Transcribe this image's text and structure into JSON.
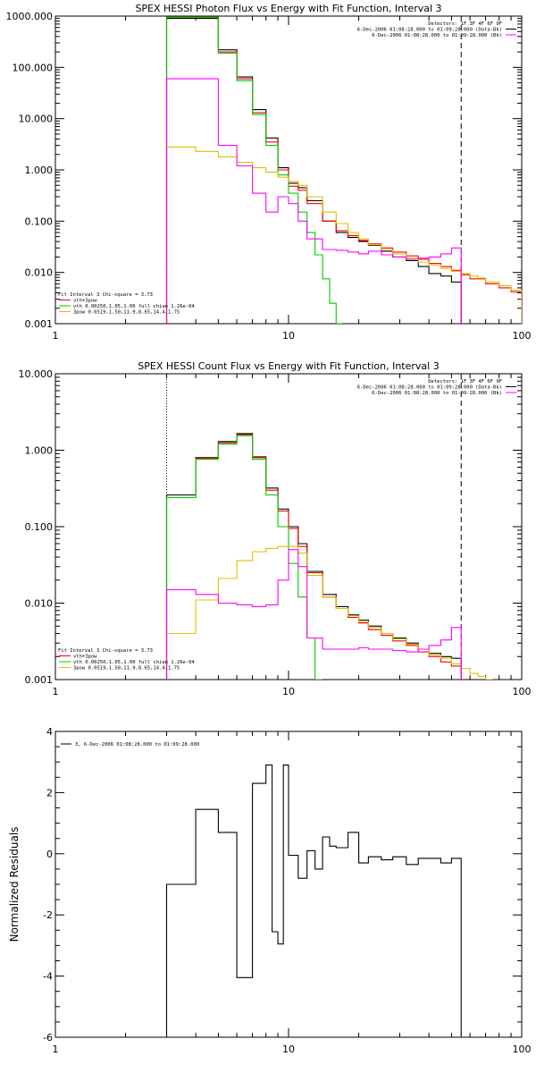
{
  "chart_data": [
    {
      "type": "line",
      "title": "SPEX HESSI Photon Flux vs Energy with Fit Function, Interval 3",
      "xscale": "log",
      "yscale": "log",
      "xlim": [
        1,
        100
      ],
      "ylim": [
        0.001,
        1000
      ],
      "x_ticks": [
        "1",
        "10",
        "100"
      ],
      "y_ticks": [
        "0.001",
        "0.010",
        "0.100",
        "1.000",
        "10.000",
        "100.000",
        "1000.000"
      ],
      "y_tick_values": [
        0.001,
        0.01,
        0.1,
        1,
        10,
        100,
        1000
      ],
      "vline_dotted": 3.0,
      "vline_dashed": 55.0,
      "legend_tr": [
        {
          "text": "Detectors: 1F 3F 4F 6F 9F",
          "color": "#000000"
        },
        {
          "text": "6-Dec-2006 01:08:28.000 to 01:09:28.000 (Data-Bk)",
          "color": "#000000"
        },
        {
          "text": "6-Dec-2006 01:08:28.000 to 01:09:28.000 (Bk)",
          "color": "#ff00ff"
        }
      ],
      "legend_bl": [
        {
          "text": "Fit Interval 3   Chi-square = 3.73",
          "color": "#000000"
        },
        {
          "text": "vth+3pow",
          "color": "#ff0000"
        },
        {
          "text": "vth 0.00250,1.05,1.00  full chian 1.26e-04",
          "color": "#00cc00"
        },
        {
          "text": "3pow 0.0519,1.50,11.9,8.65,14.4,1.75",
          "color": "#e0c000"
        }
      ],
      "series": [
        {
          "key": "data",
          "color": "#000000",
          "edges": [
            3,
            4,
            5,
            6,
            7,
            8,
            9,
            10,
            11,
            12,
            14,
            16,
            18,
            20,
            22,
            25,
            28,
            32,
            36,
            40,
            45,
            50,
            55
          ],
          "values": [
            900,
            900,
            220,
            65,
            15,
            4.2,
            1.1,
            0.55,
            0.45,
            0.25,
            0.1,
            0.06,
            0.048,
            0.04,
            0.034,
            0.026,
            0.02,
            0.017,
            0.013,
            0.0095,
            0.0085,
            0.0065
          ]
        },
        {
          "key": "fit",
          "color": "#ff0000",
          "edges": [
            3,
            4,
            5,
            6,
            7,
            8,
            9,
            10,
            11,
            12,
            14,
            16,
            18,
            20,
            22,
            25,
            28,
            32,
            36,
            40,
            45,
            50,
            55,
            60,
            70,
            80,
            90,
            100
          ],
          "values": [
            950,
            950,
            200,
            60,
            13,
            3.5,
            1.0,
            0.48,
            0.4,
            0.22,
            0.1,
            0.065,
            0.052,
            0.042,
            0.036,
            0.03,
            0.025,
            0.021,
            0.018,
            0.015,
            0.013,
            0.011,
            0.009,
            0.0075,
            0.006,
            0.005,
            0.0042
          ]
        },
        {
          "key": "vth",
          "color": "#00cc00",
          "edges": [
            3,
            4,
            5,
            6,
            7,
            8,
            9,
            10,
            11,
            12,
            13,
            14,
            15,
            16,
            17
          ],
          "values": [
            950,
            950,
            190,
            55,
            12,
            3.0,
            0.8,
            0.35,
            0.15,
            0.06,
            0.022,
            0.0075,
            0.0025,
            0.001
          ]
        },
        {
          "key": "pow",
          "color": "#e0c000",
          "edges": [
            3,
            4,
            5,
            6,
            7,
            8,
            9,
            10,
            11,
            12,
            14,
            16,
            18,
            20,
            22,
            25,
            28,
            32,
            36,
            40,
            45,
            50,
            55,
            60,
            65,
            70,
            80,
            90,
            100
          ],
          "values": [
            2.8,
            2.3,
            1.8,
            1.4,
            1.1,
            0.9,
            0.72,
            0.6,
            0.5,
            0.3,
            0.15,
            0.09,
            0.06,
            0.045,
            0.035,
            0.028,
            0.023,
            0.019,
            0.016,
            0.014,
            0.012,
            0.0105,
            0.0095,
            0.0085,
            0.0078,
            0.0065,
            0.0055,
            0.0045
          ]
        },
        {
          "key": "bk",
          "color": "#ff00ff",
          "edges": [
            3,
            4,
            5,
            6,
            7,
            8,
            9,
            10,
            11,
            12,
            14,
            16,
            18,
            20,
            22,
            25,
            28,
            32,
            36,
            40,
            45,
            50,
            55
          ],
          "values": [
            60,
            60,
            3.0,
            1.2,
            0.35,
            0.15,
            0.3,
            0.22,
            0.1,
            0.045,
            0.028,
            0.027,
            0.025,
            0.023,
            0.026,
            0.022,
            0.02,
            0.018,
            0.019,
            0.02,
            0.023,
            0.03
          ]
        }
      ]
    },
    {
      "type": "line",
      "title": "SPEX HESSI Count Flux vs Energy with Fit Function, Interval 3",
      "xscale": "log",
      "yscale": "log",
      "xlim": [
        1,
        100
      ],
      "ylim": [
        0.001,
        10
      ],
      "x_ticks": [
        "1",
        "10",
        "100"
      ],
      "y_ticks": [
        "0.001",
        "0.010",
        "0.100",
        "1.000",
        "10.000"
      ],
      "y_tick_values": [
        0.001,
        0.01,
        0.1,
        1,
        10
      ],
      "vline_dotted": 3.0,
      "vline_dashed": 55.0,
      "legend_tr": [
        {
          "text": "Detectors: 1F 3F 4F 6F 9F",
          "color": "#000000"
        },
        {
          "text": "6-Dec-2006 01:08:28.000 to 01:09:28.000 (Data-Bk)",
          "color": "#000000"
        },
        {
          "text": "6-Dec-2006 01:08:28.000 to 01:09:28.000 (Bk)",
          "color": "#ff00ff"
        }
      ],
      "legend_bl": [
        {
          "text": "Fit Interval 3   Chi-square = 3.73",
          "color": "#000000"
        },
        {
          "text": "vth+3pow",
          "color": "#ff0000"
        },
        {
          "text": "vth 0.00250,1.05,1.00  full chian 1.26e-04",
          "color": "#00cc00"
        },
        {
          "text": "3pow 0.0519,1.50,11.9,8.65,14.4,1.75",
          "color": "#e0c000"
        }
      ],
      "series": [
        {
          "key": "data",
          "color": "#000000",
          "edges": [
            3,
            4,
            5,
            6,
            7,
            8,
            9,
            10,
            11,
            12,
            14,
            16,
            18,
            20,
            22,
            25,
            28,
            32,
            36,
            40,
            45,
            50,
            55
          ],
          "values": [
            0.26,
            0.8,
            1.3,
            1.65,
            0.82,
            0.32,
            0.17,
            0.1,
            0.06,
            0.026,
            0.013,
            0.009,
            0.007,
            0.006,
            0.005,
            0.004,
            0.0035,
            0.003,
            0.0025,
            0.0022,
            0.002,
            0.0019
          ]
        },
        {
          "key": "fit",
          "color": "#ff0000",
          "edges": [
            3,
            4,
            5,
            6,
            7,
            8,
            9,
            10,
            11,
            12,
            14,
            16,
            18,
            20,
            22,
            25,
            28,
            32,
            36,
            40,
            45,
            50,
            55
          ],
          "values": [
            0.24,
            0.78,
            1.25,
            1.6,
            0.8,
            0.3,
            0.16,
            0.095,
            0.055,
            0.025,
            0.012,
            0.0085,
            0.0065,
            0.0055,
            0.0045,
            0.0038,
            0.0032,
            0.0028,
            0.0023,
            0.002,
            0.0017,
            0.0015
          ]
        },
        {
          "key": "vth",
          "color": "#00cc00",
          "edges": [
            3,
            4,
            5,
            6,
            7,
            8,
            9,
            10,
            11,
            12,
            13,
            14
          ],
          "values": [
            0.24,
            0.76,
            1.2,
            1.55,
            0.76,
            0.26,
            0.1,
            0.033,
            0.012,
            0.0035,
            0.001
          ]
        },
        {
          "key": "pow",
          "color": "#e0c000",
          "edges": [
            3,
            4,
            5,
            6,
            7,
            8,
            9,
            10,
            11,
            12,
            14,
            16,
            18,
            20,
            22,
            25,
            28,
            32,
            36,
            40,
            45,
            50,
            55,
            60,
            65,
            70,
            75
          ],
          "values": [
            0.004,
            0.011,
            0.021,
            0.036,
            0.047,
            0.052,
            0.055,
            0.055,
            0.045,
            0.023,
            0.012,
            0.0085,
            0.0068,
            0.0057,
            0.0048,
            0.004,
            0.0034,
            0.0029,
            0.0025,
            0.0021,
            0.0019,
            0.0016,
            0.0014,
            0.0012,
            0.0011,
            0.001
          ]
        },
        {
          "key": "bk",
          "color": "#ff00ff",
          "edges": [
            3,
            4,
            5,
            6,
            7,
            8,
            9,
            10,
            11,
            12,
            14,
            16,
            18,
            20,
            22,
            25,
            28,
            32,
            36,
            40,
            45,
            50,
            55
          ],
          "values": [
            0.015,
            0.013,
            0.01,
            0.0095,
            0.009,
            0.0095,
            0.02,
            0.05,
            0.03,
            0.0035,
            0.0025,
            0.0025,
            0.0025,
            0.0026,
            0.0025,
            0.0025,
            0.0024,
            0.0023,
            0.0025,
            0.0028,
            0.0033,
            0.0048
          ]
        }
      ]
    },
    {
      "type": "line",
      "title": "",
      "ylabel": "Normalized Residuals",
      "xscale": "log",
      "yscale": "linear",
      "xlim": [
        1,
        100
      ],
      "ylim": [
        -6,
        4
      ],
      "x_ticks": [
        "1",
        "10",
        "100"
      ],
      "y_ticks": [
        "-6",
        "-4",
        "-2",
        "0",
        "2",
        "4"
      ],
      "y_tick_values": [
        -6,
        -4,
        -2,
        0,
        2,
        4
      ],
      "legend_tl": [
        {
          "text": "3,  6-Dec-2006 01:08:28.000 to 01:09:28.000",
          "color": "#000000"
        }
      ],
      "series": [
        {
          "key": "residuals",
          "color": "#000000",
          "edges": [
            3,
            4,
            5,
            6,
            7,
            8,
            8.5,
            9,
            9.5,
            10,
            11,
            12,
            13,
            14,
            15,
            16,
            18,
            20,
            22,
            25,
            28,
            32,
            36,
            40,
            45,
            50,
            55
          ],
          "values": [
            -1.0,
            1.45,
            0.7,
            -4.05,
            2.3,
            2.9,
            -2.55,
            -2.95,
            2.9,
            -0.05,
            -0.8,
            0.1,
            -0.5,
            0.55,
            0.25,
            0.2,
            0.7,
            -0.3,
            -0.1,
            -0.2,
            -0.1,
            -0.35,
            -0.15,
            -0.15,
            -0.3,
            -0.15
          ]
        }
      ]
    }
  ]
}
